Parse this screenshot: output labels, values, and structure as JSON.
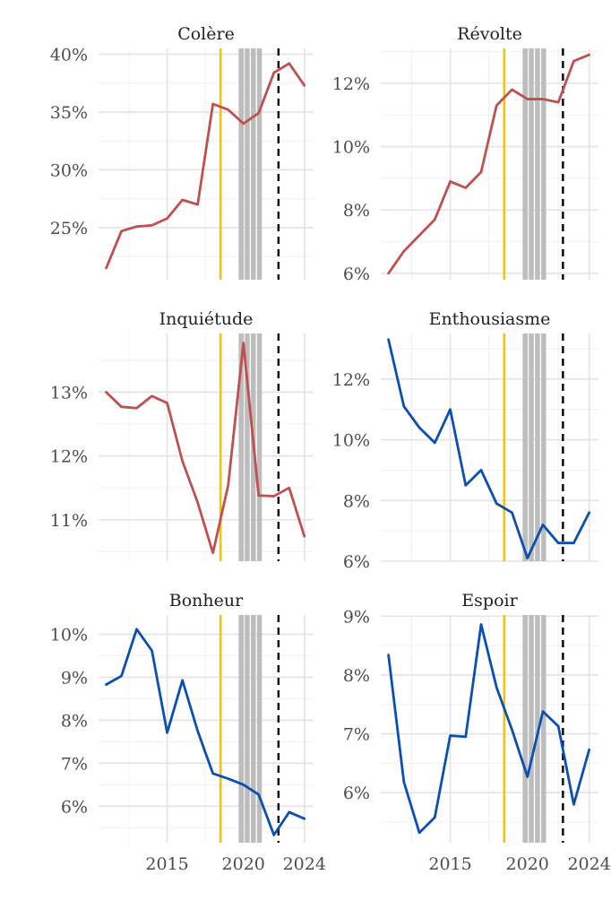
{
  "chart_data": [
    {
      "type": "line",
      "title": "Colère",
      "color": "#c0504d",
      "x": [
        2011,
        2012,
        2013,
        2014,
        2015,
        2016,
        2017,
        2018,
        2019,
        2020,
        2021,
        2022,
        2023,
        2024
      ],
      "series": [
        {
          "values": [
            0.215,
            0.247,
            0.251,
            0.252,
            0.258,
            0.274,
            0.27,
            0.357,
            0.352,
            0.34,
            0.349,
            0.384,
            0.392,
            0.373
          ]
        }
      ],
      "ylim": [
        0.205,
        0.405
      ],
      "yticks": [
        0.25,
        0.3,
        0.35,
        0.4
      ],
      "ytick_labels": [
        "25%",
        "30%",
        "35%",
        "40%"
      ],
      "xticks": [],
      "xtick_labels": []
    },
    {
      "type": "line",
      "title": "Révolte",
      "color": "#c0504d",
      "x": [
        2011,
        2012,
        2013,
        2014,
        2015,
        2016,
        2017,
        2018,
        2019,
        2020,
        2021,
        2022,
        2023,
        2024
      ],
      "series": [
        {
          "values": [
            0.06,
            0.067,
            0.072,
            0.077,
            0.089,
            0.087,
            0.092,
            0.113,
            0.118,
            0.115,
            0.115,
            0.114,
            0.127,
            0.129
          ]
        }
      ],
      "ylim": [
        0.058,
        0.131
      ],
      "yticks": [
        0.06,
        0.08,
        0.1,
        0.12
      ],
      "ytick_labels": [
        "6%",
        "8%",
        "10%",
        "12%"
      ],
      "xticks": [],
      "xtick_labels": []
    },
    {
      "type": "line",
      "title": "Inquiétude",
      "color": "#c0504d",
      "x": [
        2011,
        2012,
        2013,
        2014,
        2015,
        2016,
        2017,
        2018,
        2019,
        2020,
        2021,
        2022,
        2023,
        2024
      ],
      "series": [
        {
          "values": [
            0.13,
            0.1277,
            0.1275,
            0.1294,
            0.1283,
            0.1192,
            0.1127,
            0.1048,
            0.1154,
            0.1377,
            0.1138,
            0.1137,
            0.115,
            0.1074
          ]
        }
      ],
      "ylim": [
        0.1035,
        0.1392
      ],
      "yticks": [
        0.11,
        0.12,
        0.13
      ],
      "ytick_labels": [
        "11%",
        "12%",
        "13%"
      ],
      "xticks": [],
      "xtick_labels": []
    },
    {
      "type": "line",
      "title": "Enthousiasme",
      "color": "#0b4fb3",
      "x": [
        2011,
        2012,
        2013,
        2014,
        2015,
        2016,
        2017,
        2018,
        2019,
        2020,
        2021,
        2022,
        2023,
        2024
      ],
      "series": [
        {
          "values": [
            0.133,
            0.111,
            0.104,
            0.099,
            0.11,
            0.085,
            0.09,
            0.079,
            0.076,
            0.061,
            0.072,
            0.066,
            0.066,
            0.076
          ]
        }
      ],
      "ylim": [
        0.06,
        0.135
      ],
      "yticks": [
        0.06,
        0.08,
        0.1,
        0.12
      ],
      "ytick_labels": [
        "6%",
        "8%",
        "10%",
        "12%"
      ],
      "xticks": [],
      "xtick_labels": []
    },
    {
      "type": "line",
      "title": "Bonheur",
      "color": "#0b4fb3",
      "x": [
        2011,
        2012,
        2013,
        2014,
        2015,
        2016,
        2017,
        2018,
        2019,
        2020,
        2021,
        2022,
        2023,
        2024
      ],
      "series": [
        {
          "values": [
            0.0883,
            0.0903,
            0.1012,
            0.0962,
            0.0771,
            0.0893,
            0.0775,
            0.0676,
            0.0664,
            0.065,
            0.0627,
            0.0533,
            0.0586,
            0.0571
          ]
        }
      ],
      "ylim": [
        0.0515,
        0.1045
      ],
      "yticks": [
        0.06,
        0.07,
        0.08,
        0.09,
        0.1
      ],
      "ytick_labels": [
        "6%",
        "7%",
        "8%",
        "9%",
        "10%"
      ],
      "xticks": [
        2015,
        2020,
        2024
      ],
      "xtick_labels": [
        "2015",
        "2020",
        "2024"
      ]
    },
    {
      "type": "line",
      "title": "Espoir",
      "color": "#0b4fb3",
      "x": [
        2011,
        2012,
        2013,
        2014,
        2015,
        2016,
        2017,
        2018,
        2019,
        2020,
        2021,
        2022,
        2023,
        2024
      ],
      "series": [
        {
          "values": [
            0.0834,
            0.0618,
            0.0532,
            0.0558,
            0.0697,
            0.0695,
            0.0886,
            0.0779,
            0.0707,
            0.0627,
            0.0738,
            0.0713,
            0.058,
            0.0673
          ]
        }
      ],
      "ylim": [
        0.0515,
        0.0902
      ],
      "yticks": [
        0.06,
        0.07,
        0.08,
        0.09
      ],
      "ytick_labels": [
        "6%",
        "7%",
        "8%",
        "9%"
      ],
      "xticks": [
        2015,
        2020,
        2024
      ],
      "xtick_labels": [
        "2015",
        "2020",
        "2024"
      ]
    }
  ],
  "annotations": {
    "xlim": [
      2010.5,
      2024.6
    ],
    "major_x_gridlines": [
      2015,
      2020,
      2024
    ],
    "minor_x_gridlines": [
      2012.5,
      2017.5,
      2022
    ],
    "vertical_marker": {
      "x": 2018.5,
      "color": "#f2c500"
    },
    "shaded_band_lines": {
      "x": [
        2019.85,
        2020.25,
        2020.65,
        2021.05
      ],
      "color": "#bdbdbd"
    },
    "dashed_marker": {
      "x": 2022.3,
      "color": "#000000"
    }
  }
}
